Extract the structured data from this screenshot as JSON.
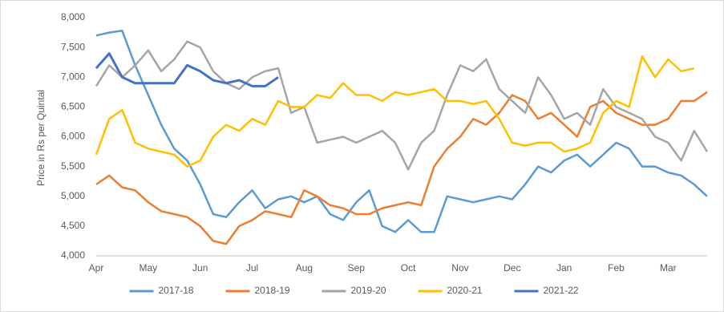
{
  "chart_data": {
    "type": "line",
    "y_label": "Price in Rs per Quintal",
    "categories": [
      "Apr",
      null,
      null,
      null,
      "May",
      null,
      null,
      null,
      "Jun",
      null,
      null,
      null,
      "Jul",
      null,
      null,
      null,
      "Aug",
      null,
      null,
      null,
      "Sep",
      null,
      null,
      null,
      "Oct",
      null,
      null,
      null,
      "Nov",
      null,
      null,
      null,
      "Dec",
      null,
      null,
      null,
      "Jan",
      null,
      null,
      null,
      "Feb",
      null,
      null,
      null,
      "Mar",
      null,
      null,
      null
    ],
    "ylim": [
      4000,
      8000
    ],
    "yticks": [
      {
        "value": 4000,
        "label": "4,000"
      },
      {
        "value": 4500,
        "label": "4,500"
      },
      {
        "value": 5000,
        "label": "5,000"
      },
      {
        "value": 5500,
        "label": "5,500"
      },
      {
        "value": 6000,
        "label": "6,000"
      },
      {
        "value": 6500,
        "label": "6,500"
      },
      {
        "value": 7000,
        "label": "7,000"
      },
      {
        "value": 7500,
        "label": "7,500"
      },
      {
        "value": 8000,
        "label": "8,000"
      }
    ],
    "grid": false,
    "legend": "bottom",
    "series": [
      {
        "name": "2017-18",
        "color": "#5b9bd5",
        "values": [
          7700,
          7750,
          7780,
          7200,
          6700,
          6200,
          5800,
          5600,
          5200,
          4700,
          4650,
          4900,
          5100,
          4800,
          4950,
          5000,
          4900,
          5000,
          4700,
          4600,
          4900,
          5100,
          4500,
          4400,
          4600,
          4400,
          4400,
          5000,
          4950,
          4900,
          4950,
          5000,
          4950,
          5200,
          5500,
          5400,
          5600,
          5700,
          5500,
          5700,
          5900,
          5800,
          5500,
          5500,
          5400,
          5350,
          5200,
          5000
        ]
      },
      {
        "name": "2018-19",
        "color": "#ed7d31",
        "values": [
          5200,
          5350,
          5150,
          5100,
          4900,
          4750,
          4700,
          4650,
          4500,
          4250,
          4200,
          4500,
          4600,
          4750,
          4700,
          4650,
          5100,
          5000,
          4850,
          4800,
          4700,
          4700,
          4800,
          4850,
          4900,
          4850,
          5500,
          5800,
          6000,
          6300,
          6200,
          6400,
          6700,
          6600,
          6300,
          6400,
          6200,
          6000,
          6500,
          6600,
          6400,
          6300,
          6200,
          6200,
          6300,
          6600,
          6600,
          6750
        ]
      },
      {
        "name": "2019-20",
        "color": "#a5a5a5",
        "values": [
          6850,
          7200,
          7000,
          7200,
          7450,
          7100,
          7300,
          7600,
          7500,
          7100,
          6900,
          6800,
          7000,
          7100,
          7150,
          6400,
          6500,
          5900,
          5950,
          6000,
          5900,
          6000,
          6100,
          5900,
          5450,
          5900,
          6100,
          6700,
          7200,
          7100,
          7300,
          6800,
          6600,
          6400,
          7000,
          6700,
          6300,
          6400,
          6200,
          6800,
          6500,
          6400,
          6300,
          6000,
          5900,
          5600,
          6100,
          5750
        ]
      },
      {
        "name": "2020-21",
        "color": "#ffc000",
        "values": [
          5700,
          6300,
          6450,
          5900,
          5800,
          5750,
          5700,
          5500,
          5600,
          6000,
          6200,
          6100,
          6300,
          6200,
          6600,
          6500,
          6500,
          6700,
          6650,
          6900,
          6700,
          6700,
          6600,
          6750,
          6700,
          6750,
          6800,
          6600,
          6600,
          6550,
          6600,
          6300,
          5900,
          5850,
          5900,
          5900,
          5750,
          5800,
          5900,
          6400,
          6600,
          6500,
          7350,
          7000,
          7300,
          7100,
          7150,
          null
        ]
      },
      {
        "name": "2021-22",
        "color": "#4472c4",
        "values": [
          7150,
          7400,
          7000,
          6900,
          6900,
          6900,
          6900,
          7200,
          7100,
          6950,
          6900,
          6950,
          6850,
          6850,
          7000,
          null,
          null,
          null,
          null,
          null,
          null,
          null,
          null,
          null,
          null,
          null,
          null,
          null,
          null,
          null,
          null,
          null,
          null,
          null,
          null,
          null,
          null,
          null,
          null,
          null,
          null,
          null,
          null,
          null,
          null,
          null,
          null,
          null
        ]
      }
    ]
  }
}
